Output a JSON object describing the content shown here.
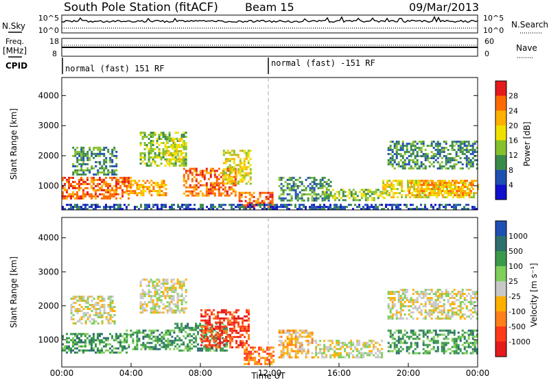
{
  "header": {
    "title": "South Pole Station (fitACF)",
    "beam": "Beam 15",
    "date": "09/Mar/2013"
  },
  "aux_panels": {
    "nsky_label": "N.Sky",
    "nsearch_label": "N.Search",
    "noise_ticks": [
      "10^5",
      "10^0"
    ],
    "freq_label": "Freq.",
    "freq_unit": "[MHz]",
    "freq_ticks": [
      "18",
      "8"
    ],
    "nave_label": "Nave",
    "nave_ticks": [
      "60",
      "0"
    ],
    "cpid_label": "CPID",
    "cpid_segments": [
      {
        "label": "normal (fast) 151 RF",
        "start_hour": 0
      },
      {
        "label": "normal (fast) -151 RF",
        "start_hour": 12
      }
    ]
  },
  "chart_data": [
    {
      "type": "heatmap",
      "name": "power",
      "xlabel": "",
      "ylabel": "Slant Range [km]",
      "x_range_hours": [
        0,
        24
      ],
      "ylim": [
        200,
        4600
      ],
      "y_ticks": [
        1000,
        2000,
        3000,
        4000
      ],
      "colorbar": {
        "label": "Power [dB]",
        "ticks": [
          "28",
          "24",
          "20",
          "16",
          "12",
          "8",
          "4"
        ],
        "colors": [
          "#e41a1c",
          "#ff6a00",
          "#ffb000",
          "#f0e000",
          "#86c12d",
          "#3a8a4a",
          "#1f4fb3",
          "#1010cc"
        ]
      },
      "regions": [
        {
          "x0": 0.0,
          "x1": 4.0,
          "y0": 600,
          "y1": 1300,
          "level": 6
        },
        {
          "x0": 0.6,
          "x1": 3.2,
          "y0": 1400,
          "y1": 2300,
          "level": 2
        },
        {
          "x0": 3.7,
          "x1": 6.0,
          "y0": 700,
          "y1": 1200,
          "level": 5
        },
        {
          "x0": 4.5,
          "x1": 7.2,
          "y0": 1700,
          "y1": 2800,
          "level": 3
        },
        {
          "x0": 6.0,
          "x1": 7.0,
          "y0": 1800,
          "y1": 2600,
          "level": 4
        },
        {
          "x0": 7.0,
          "x1": 10.0,
          "y0": 700,
          "y1": 1600,
          "level": 6
        },
        {
          "x0": 9.3,
          "x1": 10.9,
          "y0": 1100,
          "y1": 2200,
          "level": 4
        },
        {
          "x0": 10.2,
          "x1": 12.2,
          "y0": 300,
          "y1": 800,
          "level": 6
        },
        {
          "x0": 12.5,
          "x1": 15.5,
          "y0": 500,
          "y1": 1300,
          "level": 2
        },
        {
          "x0": 15.0,
          "x1": 18.8,
          "y0": 500,
          "y1": 900,
          "level": 3
        },
        {
          "x0": 18.5,
          "x1": 24.0,
          "y0": 600,
          "y1": 1200,
          "level": 4
        },
        {
          "x0": 20.0,
          "x1": 23.8,
          "y0": 700,
          "y1": 1200,
          "level": 5
        },
        {
          "x0": 18.8,
          "x1": 24.0,
          "y0": 1600,
          "y1": 2500,
          "level": 2
        },
        {
          "x0": 0.0,
          "x1": 24.0,
          "y0": 220,
          "y1": 400,
          "level": 1
        }
      ]
    },
    {
      "type": "heatmap",
      "name": "velocity",
      "xlabel": "Time UT",
      "ylabel": "Slant Range [km]",
      "x_range_hours": [
        0,
        24
      ],
      "x_tick_labels": [
        "00:00",
        "04:00",
        "08:00",
        "12:00",
        "16:00",
        "20:00",
        "00:00"
      ],
      "ylim": [
        200,
        4600
      ],
      "y_ticks": [
        1000,
        2000,
        3000,
        4000
      ],
      "colorbar": {
        "label": "Velocity [m s⁻¹]",
        "ticks": [
          "1000",
          "500",
          "100",
          "25",
          "-25",
          "-100",
          "-500",
          "-1000"
        ],
        "colors": [
          "#1f4fb3",
          "#2e6e6e",
          "#3a9a4a",
          "#7fcf5a",
          "#c8c8c8",
          "#ffb000",
          "#ff7f1a",
          "#ff3a1a",
          "#e41a1c"
        ]
      },
      "regions": [
        {
          "x0": 0.0,
          "x1": 3.8,
          "y0": 600,
          "y1": 1200,
          "level": 6
        },
        {
          "x0": 0.5,
          "x1": 3.0,
          "y0": 1500,
          "y1": 2300,
          "level": 4
        },
        {
          "x0": 4.5,
          "x1": 7.2,
          "y0": 1800,
          "y1": 2800,
          "level": 4
        },
        {
          "x0": 3.7,
          "x1": 6.5,
          "y0": 700,
          "y1": 1300,
          "level": 6
        },
        {
          "x0": 6.5,
          "x1": 9.5,
          "y0": 700,
          "y1": 1500,
          "level": 6
        },
        {
          "x0": 8.0,
          "x1": 10.8,
          "y0": 800,
          "y1": 1900,
          "level": 1
        },
        {
          "x0": 10.5,
          "x1": 12.2,
          "y0": 300,
          "y1": 800,
          "level": 2
        },
        {
          "x0": 12.5,
          "x1": 14.5,
          "y0": 500,
          "y1": 1300,
          "level": 3
        },
        {
          "x0": 14.5,
          "x1": 18.5,
          "y0": 500,
          "y1": 1000,
          "level": 4
        },
        {
          "x0": 18.8,
          "x1": 24.0,
          "y0": 600,
          "y1": 1300,
          "level": 6
        },
        {
          "x0": 18.8,
          "x1": 24.0,
          "y0": 1600,
          "y1": 2500,
          "level": 4
        }
      ]
    }
  ]
}
